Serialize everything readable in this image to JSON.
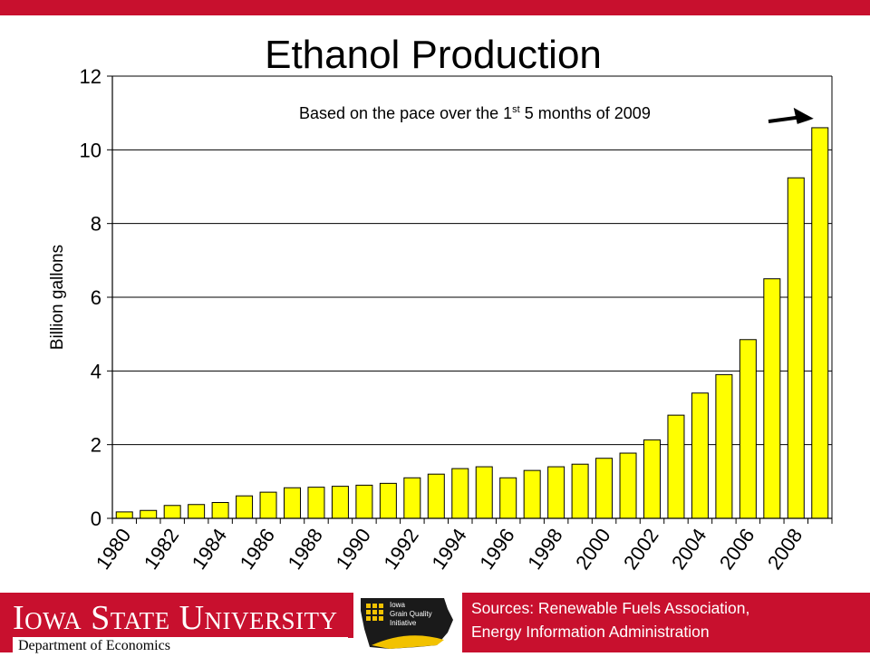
{
  "colors": {
    "accent": "#c8102e",
    "bar_fill": "#ffff00",
    "bar_stroke": "#000000",
    "logo_gold": "#f2c200"
  },
  "chart_data": {
    "type": "bar",
    "title": "Ethanol Production",
    "ylabel": "Billion gallons",
    "xlabel": "",
    "ylim": [
      0,
      12
    ],
    "yticks": [
      0,
      2,
      4,
      6,
      8,
      10,
      12
    ],
    "grid": true,
    "categories": [
      "1980",
      "1981",
      "1982",
      "1983",
      "1984",
      "1985",
      "1986",
      "1987",
      "1988",
      "1989",
      "1990",
      "1991",
      "1992",
      "1993",
      "1994",
      "1995",
      "1996",
      "1997",
      "1998",
      "1999",
      "2000",
      "2001",
      "2002",
      "2003",
      "2004",
      "2005",
      "2006",
      "2007",
      "2008",
      "2009"
    ],
    "tick_labels": [
      "1980",
      "1982",
      "1984",
      "1986",
      "1988",
      "1990",
      "1992",
      "1994",
      "1996",
      "1998",
      "2000",
      "2002",
      "2004",
      "2006",
      "2008"
    ],
    "values": [
      0.175,
      0.215,
      0.35,
      0.375,
      0.43,
      0.61,
      0.71,
      0.83,
      0.845,
      0.87,
      0.9,
      0.95,
      1.1,
      1.2,
      1.35,
      1.4,
      1.1,
      1.3,
      1.4,
      1.47,
      1.63,
      1.77,
      2.13,
      2.8,
      3.4,
      3.9,
      4.85,
      6.5,
      9.24,
      10.6
    ],
    "annotation": {
      "text_before": "Based on the pace over the 1",
      "superscript": "st",
      "text_after": " 5 months of 2009",
      "target_category": "2009"
    }
  },
  "footer": {
    "university": "Iowa State University",
    "department": "Department of Economics",
    "logo_text": [
      "Iowa",
      "Grain Quality",
      "Initiative"
    ],
    "sources_line1": "Sources: Renewable Fuels Association,",
    "sources_line2": "Energy Information Administration"
  }
}
